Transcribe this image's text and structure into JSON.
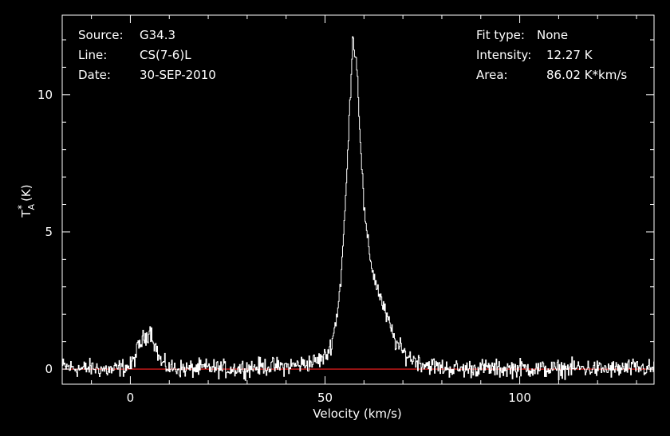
{
  "header": {
    "source_label": "Source:",
    "source_value": "G34.3",
    "line_label": "Line:",
    "line_value": "CS(7-6)L",
    "date_label": "Date:",
    "date_value": "30-SEP-2010",
    "fit_label": "Fit type:",
    "fit_value": "None",
    "intensity_label": "Intensity:",
    "intensity_value": "12.27 K",
    "area_label": "Area:",
    "area_value": "86.02 K*km/s"
  },
  "colors": {
    "background": "#000000",
    "axes": "#ffffff",
    "spectrum": "#ffffff",
    "baseline": "#ff2020"
  },
  "chart_data": {
    "type": "line",
    "title": "",
    "xlabel": "Velocity (km/s)",
    "ylabel": "T*A (K)",
    "xlim": [
      -17.5,
      134.5
    ],
    "ylim": [
      -0.55,
      12.9
    ],
    "xticks": [
      0,
      50,
      100
    ],
    "xtick_labels": [
      "0",
      "50",
      "100"
    ],
    "yticks": [
      0,
      5,
      10
    ],
    "ytick_labels": [
      "0",
      "5",
      "10"
    ],
    "grid": false,
    "legend": "none",
    "baseline_y": 0,
    "series": [
      {
        "style": "step",
        "x": [
          -17.5,
          -15,
          -12.5,
          -10,
          -7.5,
          -5,
          -2.5,
          0,
          1,
          2,
          3,
          4,
          5,
          6,
          7,
          8,
          10,
          15,
          20,
          25,
          30,
          35,
          40,
          45,
          48,
          50,
          51,
          52,
          53,
          54,
          55,
          56,
          57,
          58,
          59,
          60,
          61,
          62,
          63,
          64,
          65,
          66,
          67,
          68,
          70,
          72,
          75,
          80,
          85,
          90,
          95,
          100,
          105,
          110,
          115,
          120,
          125,
          130,
          134.5
        ],
        "y": [
          0.1,
          0.05,
          0.0,
          0.05,
          0.0,
          -0.05,
          0.05,
          0.1,
          0.4,
          0.8,
          1.05,
          1.2,
          1.45,
          1.0,
          0.55,
          0.2,
          0.05,
          0.0,
          0.05,
          0.0,
          0.05,
          0.1,
          0.1,
          0.2,
          0.3,
          0.45,
          0.7,
          1.2,
          2.0,
          3.3,
          5.6,
          8.6,
          12.1,
          11.3,
          8.4,
          5.7,
          4.5,
          3.7,
          3.1,
          2.7,
          2.2,
          1.8,
          1.4,
          1.0,
          0.6,
          0.4,
          0.2,
          0.05,
          0.0,
          0.05,
          0.0,
          0.05,
          0.0,
          0.0,
          0.05,
          0.0,
          0.0,
          0.05,
          0.0
        ]
      }
    ]
  }
}
